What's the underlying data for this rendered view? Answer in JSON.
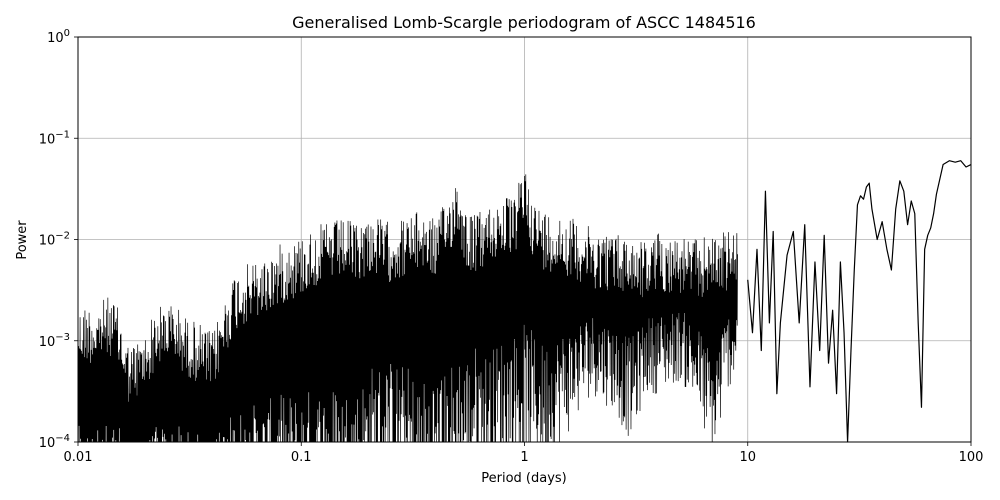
{
  "chart_data": {
    "type": "line",
    "title": "Generalised Lomb-Scargle periodogram of ASCC 1484516",
    "xlabel": "Period (days)",
    "ylabel": "Power",
    "xscale": "log",
    "yscale": "log",
    "xlim": [
      0.01,
      100
    ],
    "ylim": [
      0.0001,
      1
    ],
    "grid": true,
    "line_color": "#000000",
    "grid_color": "#b0b0b0",
    "x_ticks": [
      {
        "value": 0.01,
        "label": "0.01"
      },
      {
        "value": 0.1,
        "label": "0.1"
      },
      {
        "value": 1,
        "label": "1"
      },
      {
        "value": 10,
        "label": "10"
      },
      {
        "value": 100,
        "label": "100"
      }
    ],
    "y_ticks": [
      {
        "value": 0.0001,
        "base": "10",
        "exp": "−4"
      },
      {
        "value": 0.001,
        "base": "10",
        "exp": "−3"
      },
      {
        "value": 0.01,
        "base": "10",
        "exp": "−2"
      },
      {
        "value": 0.1,
        "base": "10",
        "exp": "−1"
      },
      {
        "value": 1,
        "base": "10",
        "exp": "0"
      }
    ],
    "envelope": {
      "x": [
        0.01,
        0.011,
        0.012,
        0.013,
        0.014,
        0.015,
        0.017,
        0.02,
        0.022,
        0.025,
        0.028,
        0.03,
        0.035,
        0.04,
        0.045,
        0.05,
        0.055,
        0.06,
        0.07,
        0.08,
        0.09,
        0.1,
        0.12,
        0.15,
        0.18,
        0.2,
        0.25,
        0.3,
        0.35,
        0.4,
        0.45,
        0.5,
        0.55,
        0.6,
        0.7,
        0.8,
        0.9,
        1.0,
        1.1,
        1.2,
        1.5,
        1.8,
        2.0,
        2.5,
        3.0,
        3.5,
        4.0,
        5.0,
        6.0,
        7.0,
        8.0,
        9.0
      ],
      "max": [
        0.0021,
        0.0024,
        0.0022,
        0.0026,
        0.0028,
        0.0022,
        0.0009,
        0.0012,
        0.002,
        0.0025,
        0.0022,
        0.0018,
        0.0015,
        0.0012,
        0.0025,
        0.0048,
        0.0055,
        0.006,
        0.0068,
        0.009,
        0.01,
        0.011,
        0.014,
        0.016,
        0.015,
        0.018,
        0.015,
        0.017,
        0.02,
        0.016,
        0.025,
        0.045,
        0.02,
        0.018,
        0.022,
        0.028,
        0.025,
        0.06,
        0.025,
        0.02,
        0.018,
        0.015,
        0.013,
        0.012,
        0.011,
        0.01,
        0.012,
        0.011,
        0.01,
        0.012,
        0.012,
        0.013
      ],
      "min": [
        1e-05,
        1e-05,
        1e-05,
        1e-05,
        1e-05,
        1e-05,
        1e-05,
        1e-05,
        1e-05,
        1e-05,
        1e-05,
        1e-05,
        1e-05,
        1e-05,
        1e-05,
        1e-05,
        1e-05,
        1e-05,
        1e-05,
        1e-05,
        1e-05,
        1e-05,
        1e-05,
        1e-05,
        1e-05,
        2e-05,
        3e-05,
        2e-05,
        1e-05,
        2e-05,
        1e-05,
        2e-05,
        3e-05,
        5e-05,
        3e-05,
        5e-05,
        6e-05,
        4e-05,
        6e-05,
        5e-05,
        0.0001,
        0.0002,
        0.0003,
        0.0002,
        0.0001,
        0.0003,
        0.0003,
        0.0004,
        0.0002,
        5e-05,
        0.0003,
        0.0005
      ]
    },
    "tail": {
      "x": [
        10,
        10.5,
        11,
        11.5,
        12,
        12.5,
        13,
        13.5,
        14,
        15,
        16,
        17,
        18,
        19,
        20,
        21,
        22,
        23,
        24,
        25,
        26,
        27,
        28,
        29,
        30,
        31,
        32,
        33,
        34,
        35,
        36,
        38,
        40,
        42,
        44,
        46,
        48,
        50,
        52,
        54,
        56,
        58,
        60,
        62,
        64,
        66,
        68,
        70,
        75,
        80,
        85,
        90,
        95,
        100
      ],
      "y": [
        0.004,
        0.0012,
        0.008,
        0.0008,
        0.03,
        0.0015,
        0.012,
        0.0003,
        0.0015,
        0.007,
        0.012,
        0.0015,
        0.014,
        0.00035,
        0.006,
        0.0008,
        0.011,
        0.0006,
        0.002,
        0.0003,
        0.006,
        0.0012,
        5e-05,
        0.0008,
        0.005,
        0.022,
        0.027,
        0.025,
        0.033,
        0.036,
        0.02,
        0.01,
        0.015,
        0.008,
        0.005,
        0.02,
        0.038,
        0.03,
        0.014,
        0.024,
        0.018,
        0.0015,
        0.00022,
        0.008,
        0.011,
        0.013,
        0.018,
        0.028,
        0.055,
        0.06,
        0.058,
        0.06,
        0.052,
        0.055
      ]
    }
  }
}
